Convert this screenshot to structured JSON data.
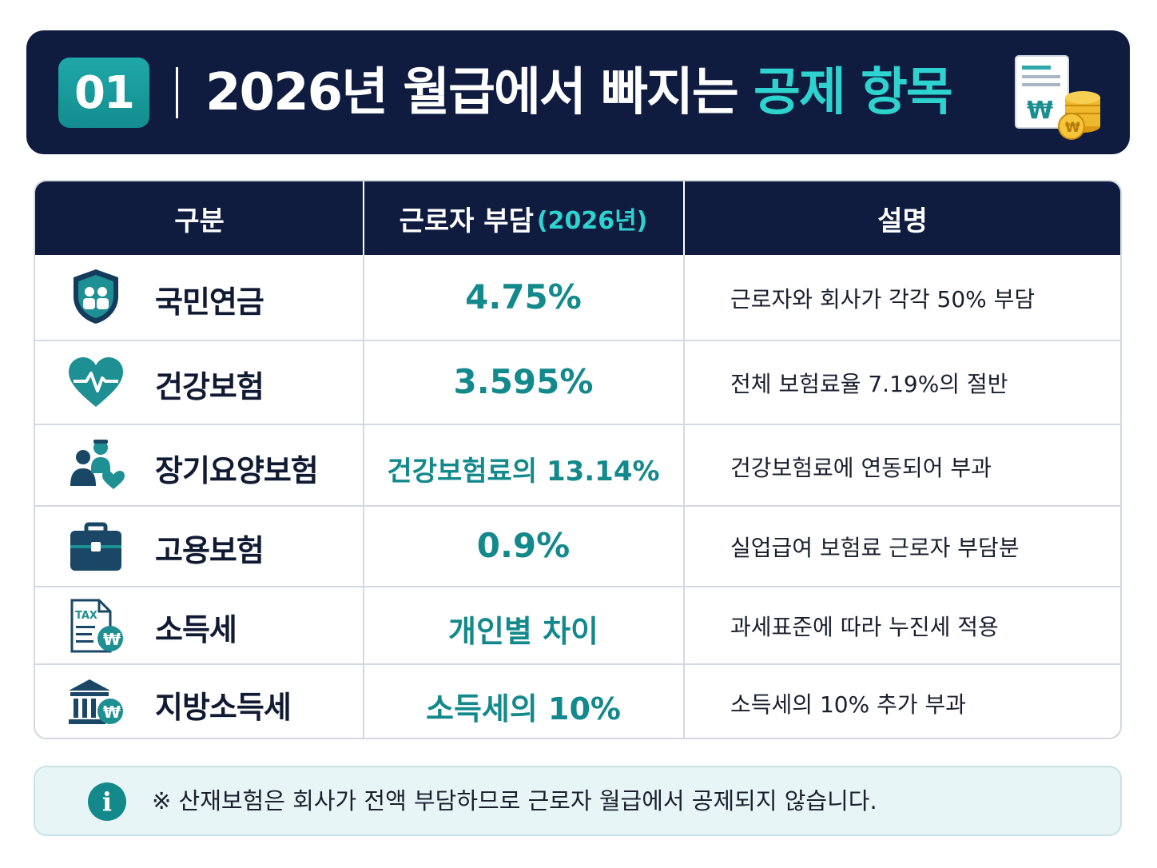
{
  "header": {
    "badge": "01",
    "title_main": "2026년 월급에서 빠지는 ",
    "title_accent": "공제 항목",
    "icon": "document-won-coins-icon"
  },
  "table": {
    "columns": {
      "category": "구분",
      "burden": "근로자 부담",
      "burden_year": "(2026년)",
      "description": "설명"
    },
    "rows": [
      {
        "icon": "shield-people-icon",
        "name": "국민연금",
        "rate": "4.75%",
        "description": "근로자와 회사가 각각 50% 부담"
      },
      {
        "icon": "heart-pulse-icon",
        "name": "건강보험",
        "rate": "3.595%",
        "description": "전체 보험료율 7.19%의 절반"
      },
      {
        "icon": "caregiver-heart-icon",
        "name": "장기요양보험",
        "rate": "건강보험료의 13.14%",
        "description": "건강보험료에 연동되어 부과"
      },
      {
        "icon": "briefcase-icon",
        "name": "고용보험",
        "rate": "0.9%",
        "description": "실업급여 보험료 근로자 부담분"
      },
      {
        "icon": "tax-document-icon",
        "name": "소득세",
        "rate": "개인별 차이",
        "description": "과세표준에 따라 누진세 적용"
      },
      {
        "icon": "government-building-icon",
        "name": "지방소득세",
        "rate": "소득세의 10%",
        "description": "소득세의 10% 추가 부과"
      }
    ]
  },
  "note": {
    "icon": "info-icon",
    "icon_glyph": "i",
    "text": "※ 산재보험은 회사가 전액 부담하므로 근로자 월급에서 공제되지 않습니다."
  },
  "colors": {
    "navy": "#0f1c3f",
    "teal": "#13898c",
    "accent": "#2ed3cf",
    "note_bg": "#e8f5f6"
  },
  "tax_icon_text": "TAX"
}
